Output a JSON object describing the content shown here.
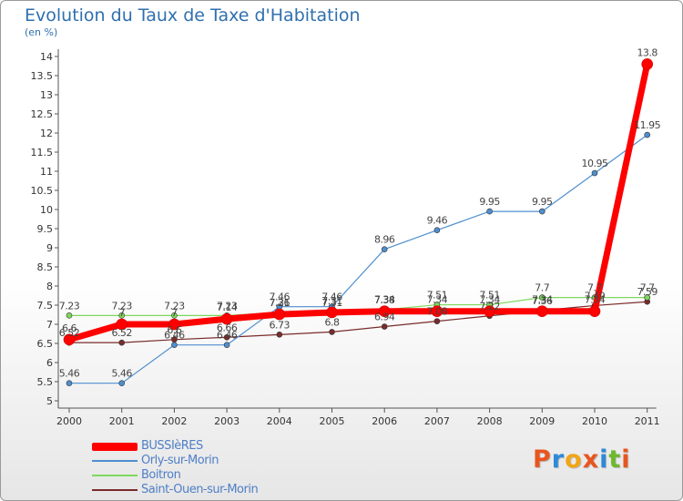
{
  "title": "Evolution du Taux de Taxe d'Habitation",
  "subtitle": "(en %)",
  "brand": {
    "text": "Proxiti",
    "letter_colors": [
      "#e8561f",
      "#2c8ad8",
      "#f2a516",
      "#e8561f",
      "#2c8ad8",
      "#6db82c",
      "#e8561f"
    ]
  },
  "chart_data": {
    "type": "line",
    "title": "Evolution du Taux de Taxe d'Habitation",
    "ylabel": "(en %)",
    "xlabel": "",
    "x": [
      "2000",
      "2001",
      "2002",
      "2003",
      "2004",
      "2005",
      "2006",
      "2007",
      "2008",
      "2009",
      "2010",
      "2011"
    ],
    "ylim": [
      5,
      14
    ],
    "yticks": [
      5,
      5.5,
      6,
      6.5,
      7,
      7.5,
      8,
      8.5,
      9,
      9.5,
      10,
      10.5,
      11,
      11.5,
      12,
      12.5,
      13,
      13.5,
      14
    ],
    "ytick_labels": [
      "5",
      "5.5",
      "6",
      "6.5",
      "7",
      "7.5",
      "8",
      "8.5",
      "9",
      "9.5",
      "10",
      "10.5",
      "11",
      "11.5",
      "12",
      "12.5",
      "13",
      "13.5",
      "14"
    ],
    "grid": false,
    "legend_position": "bottom-left",
    "series": [
      {
        "name": "BUSSIèRES",
        "color": "#ff0000",
        "values": [
          6.6,
          7.0,
          7.0,
          7.14,
          7.26,
          7.31,
          7.34,
          7.34,
          7.34,
          7.34,
          7.34,
          13.8
        ],
        "labels": [
          "6.6",
          "7",
          "7",
          "7.14",
          "7.26",
          "7.31",
          "7.34",
          "7.34",
          "7.34",
          "7.34",
          "7.34",
          "13.8"
        ]
      },
      {
        "name": "Orly-sur-Morin",
        "color": "#4f8fcf",
        "values": [
          5.46,
          5.46,
          6.46,
          6.46,
          7.46,
          7.46,
          8.96,
          9.46,
          9.95,
          9.95,
          10.95,
          11.95
        ],
        "labels": [
          "5.46",
          "5.46",
          "6.46",
          "6.46",
          "7.46",
          "7.46",
          "8.96",
          "9.46",
          "9.95",
          "9.95",
          "10.95",
          "11.95"
        ]
      },
      {
        "name": "Boitron",
        "color": "#7fd85c",
        "values": [
          7.23,
          7.23,
          7.23,
          7.23,
          7.31,
          7.31,
          7.38,
          7.51,
          7.51,
          7.7,
          7.7,
          7.7
        ],
        "labels": [
          "7.23",
          "7.23",
          "7.23",
          "7.23",
          "7.31",
          "7.31",
          "7.38",
          "7.51",
          "7.51",
          "7.7",
          "7.7",
          "7.7"
        ]
      },
      {
        "name": "Saint-Ouen-sur-Morin",
        "color": "#7a2b2b",
        "values": [
          6.52,
          6.52,
          6.6,
          6.66,
          6.73,
          6.8,
          6.94,
          7.08,
          7.22,
          7.36,
          7.49,
          7.59
        ],
        "labels": [
          "6.52",
          "6.52",
          "6.6",
          "6.66",
          "6.73",
          "6.8",
          "6.94",
          "7.08",
          "7.22",
          "7.36",
          "7.49",
          "7.59"
        ]
      }
    ]
  }
}
